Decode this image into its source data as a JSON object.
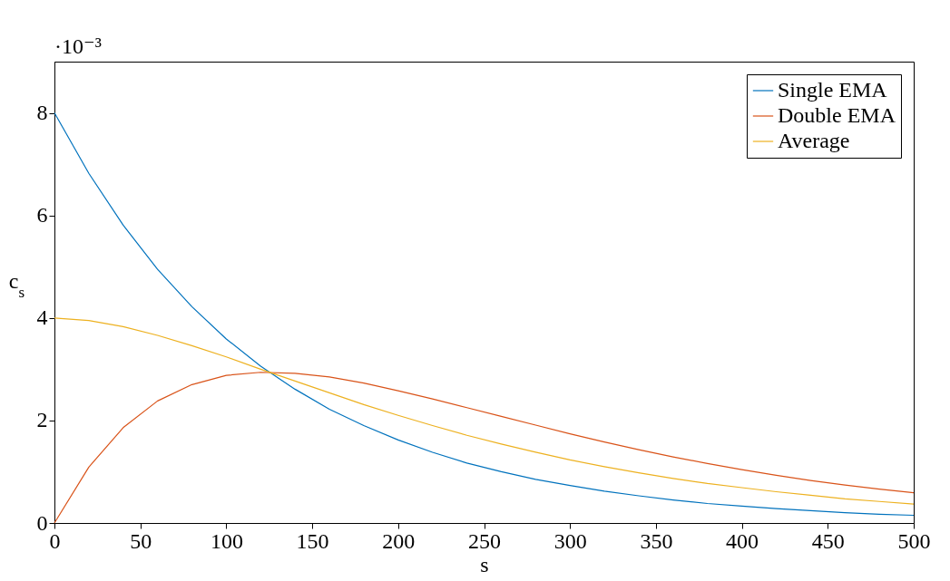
{
  "chart_data": {
    "type": "line",
    "xlabel": "s",
    "ylabel": "c$_{s}$",
    "annotations": [
      "·10⁻³"
    ],
    "x": [
      0,
      20,
      40,
      60,
      80,
      100,
      120,
      140,
      160,
      180,
      200,
      220,
      240,
      260,
      280,
      300,
      320,
      340,
      360,
      380,
      400,
      420,
      440,
      460,
      480,
      500
    ],
    "series": [
      {
        "name": "Single EMA",
        "color": "#0072bd",
        "values": [
          8,
          6.82,
          5.81,
          4.95,
          4.22,
          3.59,
          3.06,
          2.61,
          2.22,
          1.9,
          1.62,
          1.38,
          1.17,
          1.0,
          0.85,
          0.73,
          0.62,
          0.53,
          0.45,
          0.38,
          0.33,
          0.28,
          0.24,
          0.2,
          0.17,
          0.15
        ]
      },
      {
        "name": "Double EMA",
        "color": "#d95319",
        "values": [
          0,
          1.09,
          1.86,
          2.38,
          2.7,
          2.88,
          2.94,
          2.92,
          2.85,
          2.73,
          2.58,
          2.42,
          2.25,
          2.08,
          1.91,
          1.74,
          1.58,
          1.43,
          1.29,
          1.16,
          1.04,
          0.93,
          0.83,
          0.74,
          0.66,
          0.59
        ]
      },
      {
        "name": "Average",
        "color": "#edb120",
        "values": [
          4,
          3.95,
          3.83,
          3.66,
          3.46,
          3.24,
          3.0,
          2.77,
          2.54,
          2.31,
          2.1,
          1.9,
          1.71,
          1.54,
          1.38,
          1.23,
          1.1,
          0.98,
          0.87,
          0.77,
          0.69,
          0.61,
          0.54,
          0.47,
          0.42,
          0.37
        ]
      }
    ],
    "xlim": [
      0,
      500
    ],
    "xticks": [
      0,
      50,
      100,
      150,
      200,
      250,
      300,
      350,
      400,
      450,
      500
    ],
    "ylim": [
      0,
      9
    ],
    "yticks": [
      0,
      2,
      4,
      6,
      8
    ],
    "legend": "top right",
    "grid": false,
    "marker": "none",
    "line_style": "solid"
  }
}
